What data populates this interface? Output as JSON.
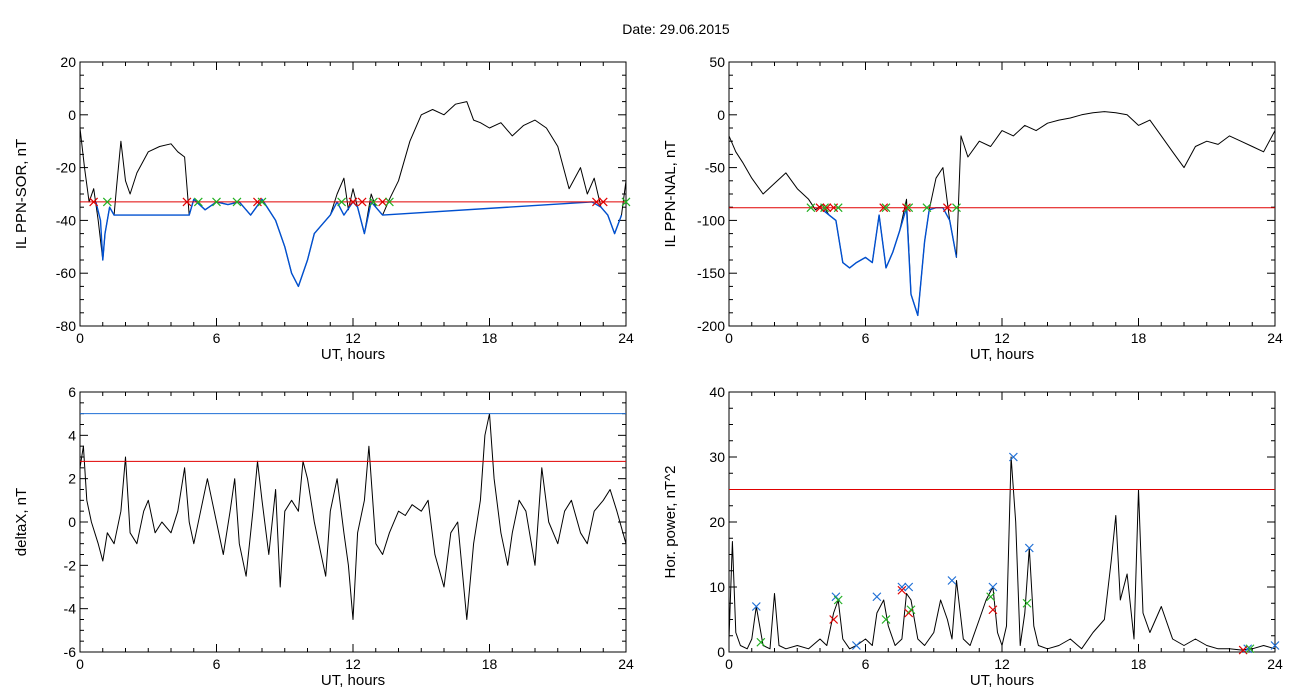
{
  "figure": {
    "title": "Date:  29.06.2015"
  },
  "colors": {
    "trace": "#000000",
    "subset": "#0050d0",
    "threshold": "#e00000",
    "upper_threshold": "#1f6fd6",
    "marker_red": "#e00000",
    "marker_green": "#22b022",
    "marker_blue": "#1f6fd6"
  },
  "chart_data": [
    {
      "id": "sor",
      "type": "line",
      "xlabel": "UT, hours",
      "ylabel": "IL PPN-SOR, nT",
      "xlim": [
        0,
        24
      ],
      "ylim": [
        -80,
        20
      ],
      "xticks": [
        "0",
        "6",
        "12",
        "18",
        "24"
      ],
      "yticks": [
        "20",
        "0",
        "-20",
        "-40",
        "-60",
        "-80"
      ],
      "series": [
        {
          "role": "trace",
          "x": [
            0,
            0.2,
            0.4,
            0.6,
            0.8,
            1.0,
            1.1,
            1.3,
            1.5,
            1.6,
            1.8,
            2.0,
            2.2,
            2.5,
            3.0,
            3.5,
            4.0,
            4.3,
            4.6,
            4.8,
            5.0,
            5.5,
            6.0,
            6.5,
            7.0,
            7.5,
            8.0,
            8.3,
            8.6,
            9.0,
            9.3,
            9.6,
            10.0,
            10.3,
            10.6,
            11.0,
            11.3,
            11.6,
            11.8,
            12.0,
            12.2,
            12.5,
            12.8,
            13.0,
            13.3,
            13.6,
            14.0,
            14.5,
            15.0,
            15.5,
            16.0,
            16.5,
            17.0,
            17.3,
            17.6,
            18.0,
            18.5,
            19.0,
            19.5,
            20.0,
            20.5,
            21.0,
            21.5,
            22.0,
            22.3,
            22.6,
            22.9,
            23.2,
            23.5,
            23.8,
            24.0
          ],
          "y": [
            -5,
            -20,
            -33,
            -28,
            -40,
            -55,
            -45,
            -35,
            -38,
            -28,
            -10,
            -25,
            -30,
            -22,
            -14,
            -12,
            -11,
            -14,
            -16,
            -38,
            -32,
            -36,
            -33,
            -34,
            -33,
            -38,
            -32,
            -36,
            -40,
            -50,
            -60,
            -65,
            -55,
            -45,
            -42,
            -38,
            -30,
            -24,
            -36,
            -28,
            -35,
            -45,
            -30,
            -35,
            -38,
            -32,
            -25,
            -10,
            0,
            2,
            0,
            4,
            5,
            -2,
            -3,
            -5,
            -3,
            -8,
            -4,
            -2,
            -5,
            -12,
            -28,
            -20,
            -30,
            -24,
            -35,
            -38,
            -45,
            -38,
            -25
          ]
        },
        {
          "role": "subset",
          "x": [
            0.7,
            0.9,
            1.0,
            1.1,
            1.3,
            1.5,
            4.8,
            5.0,
            5.5,
            6.0,
            6.5,
            7.0,
            7.5,
            8.0,
            8.3,
            8.6,
            9.0,
            9.3,
            9.6,
            10.0,
            10.3,
            10.6,
            11.0,
            11.3,
            11.6,
            12.0,
            12.2,
            12.5,
            12.8,
            13.0,
            13.3,
            22.5,
            22.9,
            23.2,
            23.5,
            23.8
          ],
          "y": [
            -33,
            -40,
            -55,
            -45,
            -35,
            -38,
            -38,
            -32,
            -36,
            -33,
            -34,
            -33,
            -38,
            -32,
            -36,
            -40,
            -50,
            -60,
            -65,
            -55,
            -45,
            -42,
            -38,
            -33,
            -38,
            -33,
            -35,
            -45,
            -33,
            -35,
            -38,
            -33,
            -35,
            -38,
            -45,
            -38
          ]
        }
      ],
      "hlines": [
        {
          "role": "threshold",
          "y": -33
        }
      ],
      "markers": [
        {
          "color": "marker_red",
          "x": [
            0.6,
            4.7,
            7.8,
            12.0,
            12.4,
            13.3,
            22.7,
            23.0
          ]
        },
        {
          "color": "marker_green",
          "x": [
            1.2,
            5.2,
            6.0,
            6.9,
            8.0,
            11.5,
            12.9,
            13.6,
            24.0
          ]
        }
      ],
      "marker_y": -33
    },
    {
      "id": "nal",
      "type": "line",
      "xlabel": "UT, hours",
      "ylabel": "IL PPN-NAL, nT",
      "xlim": [
        0,
        24
      ],
      "ylim": [
        -200,
        50
      ],
      "xticks": [
        "0",
        "6",
        "12",
        "18",
        "24"
      ],
      "yticks": [
        "50",
        "0",
        "-50",
        "-100",
        "-150",
        "-200"
      ],
      "series": [
        {
          "role": "trace",
          "x": [
            0,
            0.3,
            0.6,
            1.0,
            1.5,
            2.0,
            2.5,
            3.0,
            3.5,
            3.8,
            4.1,
            4.4,
            4.7,
            5.0,
            5.3,
            5.6,
            6.0,
            6.3,
            6.6,
            6.9,
            7.2,
            7.5,
            7.8,
            8.0,
            8.3,
            8.6,
            8.8,
            9.1,
            9.4,
            9.7,
            10.0,
            10.2,
            10.5,
            11.0,
            11.5,
            12.0,
            12.5,
            13.0,
            13.5,
            14.0,
            14.5,
            15.0,
            15.5,
            16.0,
            16.5,
            17.0,
            17.5,
            18.0,
            18.5,
            19.0,
            19.5,
            20.0,
            20.5,
            21.0,
            21.5,
            22.0,
            22.5,
            23.0,
            23.5,
            24.0
          ],
          "y": [
            -20,
            -35,
            -45,
            -60,
            -75,
            -65,
            -55,
            -70,
            -80,
            -90,
            -85,
            -95,
            -100,
            -140,
            -145,
            -140,
            -135,
            -140,
            -95,
            -145,
            -130,
            -110,
            -80,
            -170,
            -190,
            -120,
            -90,
            -60,
            -50,
            -100,
            -135,
            -20,
            -40,
            -25,
            -30,
            -15,
            -20,
            -10,
            -15,
            -8,
            -5,
            -3,
            0,
            2,
            3,
            2,
            0,
            -10,
            -5,
            -20,
            -35,
            -50,
            -30,
            -25,
            -28,
            -20,
            -25,
            -30,
            -35,
            -15
          ]
        },
        {
          "role": "subset",
          "x": [
            4.0,
            4.4,
            4.7,
            5.0,
            5.3,
            5.6,
            6.0,
            6.3,
            6.6,
            6.9,
            7.2,
            7.5,
            7.8,
            8.0,
            8.3,
            8.6,
            8.8,
            9.1,
            9.4,
            9.7,
            10.0
          ],
          "y": [
            -88,
            -95,
            -100,
            -140,
            -145,
            -140,
            -135,
            -140,
            -95,
            -145,
            -130,
            -110,
            -88,
            -170,
            -190,
            -120,
            -90,
            -88,
            -88,
            -100,
            -135
          ]
        }
      ],
      "hlines": [
        {
          "role": "threshold",
          "y": -88
        }
      ],
      "markers": [
        {
          "color": "marker_red",
          "x": [
            4.0,
            4.3,
            4.6,
            6.8,
            7.8,
            9.6
          ]
        },
        {
          "color": "marker_green",
          "x": [
            3.6,
            4.2,
            4.8,
            6.9,
            7.9,
            8.7,
            10.0
          ]
        }
      ],
      "marker_y": -88
    },
    {
      "id": "deltax",
      "type": "line",
      "xlabel": "UT, hours",
      "ylabel": "deltaX, nT",
      "xlim": [
        0,
        24
      ],
      "ylim": [
        -6,
        6
      ],
      "xticks": [
        "0",
        "6",
        "12",
        "18",
        "24"
      ],
      "yticks": [
        "6",
        "4",
        "2",
        "0",
        "-2",
        "-4",
        "-6"
      ],
      "series": [
        {
          "role": "trace",
          "x": [
            0,
            0.15,
            0.3,
            0.5,
            0.8,
            1.0,
            1.2,
            1.5,
            1.8,
            2.0,
            2.2,
            2.5,
            2.8,
            3.0,
            3.3,
            3.6,
            4.0,
            4.3,
            4.6,
            4.8,
            5.0,
            5.3,
            5.6,
            6.0,
            6.3,
            6.6,
            6.8,
            7.0,
            7.3,
            7.6,
            7.8,
            8.0,
            8.3,
            8.6,
            8.8,
            9.0,
            9.3,
            9.6,
            9.8,
            10.0,
            10.3,
            10.6,
            10.8,
            11.0,
            11.3,
            11.6,
            11.8,
            12.0,
            12.2,
            12.5,
            12.7,
            13.0,
            13.3,
            13.6,
            14.0,
            14.3,
            14.6,
            15.0,
            15.3,
            15.6,
            16.0,
            16.3,
            16.6,
            17.0,
            17.3,
            17.6,
            17.8,
            18.0,
            18.2,
            18.5,
            18.8,
            19.0,
            19.3,
            19.6,
            20.0,
            20.3,
            20.6,
            21.0,
            21.3,
            21.6,
            22.0,
            22.3,
            22.6,
            23.0,
            23.3,
            23.6,
            24.0
          ],
          "y": [
            2.5,
            3.5,
            1.0,
            0,
            -1.0,
            -1.8,
            -0.5,
            -1.0,
            0.5,
            3.0,
            -0.5,
            -1.0,
            0.5,
            1.0,
            -0.5,
            0,
            -0.5,
            0.5,
            2.5,
            0,
            -1.0,
            0.5,
            2.0,
            0,
            -1.5,
            0.5,
            2.0,
            -1.0,
            -2.5,
            0.5,
            2.8,
            1.0,
            -1.5,
            1.5,
            -3.0,
            0.5,
            1.0,
            0.5,
            2.8,
            2.0,
            0,
            -1.5,
            -2.5,
            0.5,
            2.0,
            -0.5,
            -2.0,
            -4.5,
            -0.5,
            1.0,
            3.5,
            -1.0,
            -1.5,
            -0.5,
            0.5,
            0.3,
            0.8,
            0.5,
            1.0,
            -1.5,
            -3.0,
            -0.5,
            0,
            -4.5,
            -1.0,
            1.0,
            4.0,
            5.0,
            2.0,
            -0.5,
            -2.0,
            -0.5,
            1.0,
            0.5,
            -2.0,
            2.5,
            0,
            -1.0,
            0.5,
            1.0,
            -0.5,
            -1.0,
            0.5,
            1.0,
            1.5,
            0.5,
            -1.0
          ]
        }
      ],
      "hlines": [
        {
          "role": "upper_threshold",
          "y": 5.0
        },
        {
          "role": "threshold",
          "y": 2.8
        }
      ],
      "markers": []
    },
    {
      "id": "power",
      "type": "line",
      "xlabel": "UT, hours",
      "ylabel": "Hor. power, nT^2",
      "xlim": [
        0,
        24
      ],
      "ylim": [
        0,
        40
      ],
      "xticks": [
        "0",
        "6",
        "12",
        "18",
        "24"
      ],
      "yticks": [
        "40",
        "30",
        "20",
        "10",
        "0"
      ],
      "series": [
        {
          "role": "trace",
          "x": [
            0,
            0.15,
            0.3,
            0.5,
            0.8,
            1.0,
            1.2,
            1.5,
            1.8,
            2.0,
            2.2,
            2.5,
            3.0,
            3.5,
            4.0,
            4.3,
            4.6,
            4.8,
            5.0,
            5.3,
            5.6,
            6.0,
            6.3,
            6.5,
            6.8,
            7.0,
            7.3,
            7.6,
            7.8,
            8.0,
            8.3,
            8.6,
            9.0,
            9.3,
            9.6,
            9.8,
            10.0,
            10.3,
            10.6,
            11.0,
            11.3,
            11.6,
            11.8,
            12.0,
            12.2,
            12.4,
            12.6,
            12.8,
            13.0,
            13.2,
            13.4,
            13.6,
            14.0,
            14.5,
            15.0,
            15.5,
            16.0,
            16.5,
            16.8,
            17.0,
            17.2,
            17.5,
            17.8,
            18.0,
            18.2,
            18.5,
            19.0,
            19.5,
            20.0,
            20.5,
            21.0,
            21.5,
            22.0,
            22.5,
            23.0,
            23.5,
            24.0
          ],
          "y": [
            2,
            17,
            3,
            1,
            0.5,
            2,
            7,
            1,
            0.5,
            9,
            1,
            0.5,
            1,
            0.5,
            2,
            1,
            6,
            8,
            2,
            0.5,
            1,
            2,
            1,
            6,
            8,
            4,
            1,
            2,
            9,
            8,
            2,
            1,
            3,
            8,
            5,
            2,
            11,
            2,
            1,
            5,
            8,
            10,
            3,
            1,
            4,
            30,
            20,
            1,
            6,
            16,
            4,
            1,
            0.5,
            1,
            2,
            0.5,
            3,
            5,
            14,
            21,
            8,
            12,
            2,
            25,
            6,
            3,
            7,
            2,
            1,
            2,
            1,
            0.5,
            0.5,
            0.3,
            0.5,
            1,
            0.5
          ]
        }
      ],
      "hlines": [
        {
          "role": "threshold",
          "y": 25
        }
      ],
      "point_markers": [
        {
          "color": "marker_blue",
          "x": [
            1.2,
            4.7,
            5.6,
            6.5,
            7.6,
            7.9,
            9.8,
            11.6,
            12.5,
            13.2,
            22.8,
            24.0
          ],
          "y": [
            7,
            8.5,
            1,
            8.5,
            10,
            10,
            11,
            10,
            30,
            16,
            0.5,
            1
          ]
        },
        {
          "color": "marker_red",
          "x": [
            4.6,
            7.6,
            7.9,
            11.6,
            22.6
          ],
          "y": [
            5,
            9.5,
            6,
            6.5,
            0.3
          ]
        },
        {
          "color": "marker_green",
          "x": [
            1.4,
            4.8,
            6.9,
            8.0,
            11.5,
            13.1,
            22.9
          ],
          "y": [
            1.5,
            8,
            5,
            6.5,
            8.5,
            7.5,
            0.5
          ]
        }
      ]
    }
  ]
}
